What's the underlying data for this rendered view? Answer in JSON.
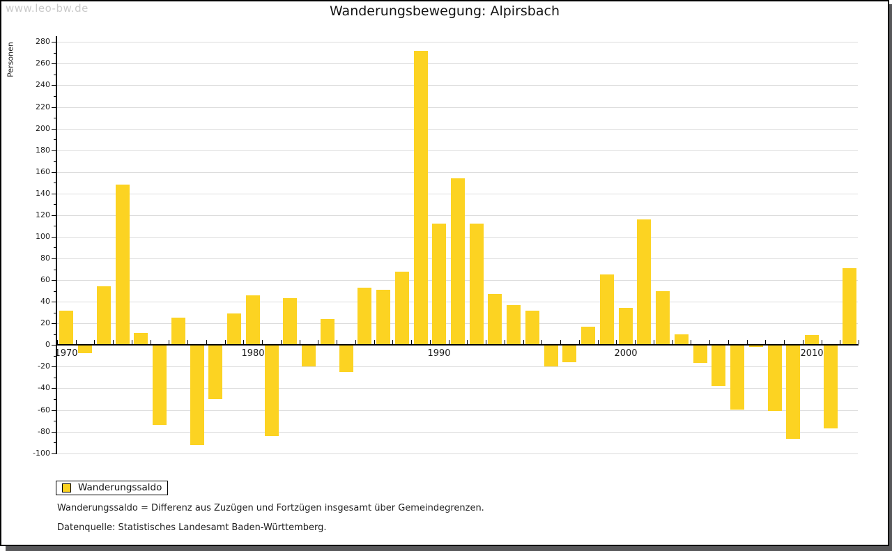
{
  "watermark": "www.leo-bw.de",
  "title": "Wanderungsbewegung: Alpirsbach",
  "legend": {
    "label": "Wanderungssaldo"
  },
  "footnotes": {
    "definition": "Wanderungssaldo = Differenz aus Zuzügen und Fortzügen insgesamt über Gemeindegrenzen.",
    "source": "Datenquelle: Statistisches Landesamt Baden-Württemberg."
  },
  "chart_data": {
    "type": "bar",
    "title": "Wanderungsbewegung: Alpirsbach",
    "ylabel": "Personen",
    "series_name": "Wanderungssaldo",
    "bar_color": "#fcd322",
    "grid": true,
    "legend_position": "bottom-left",
    "ylim": [
      -100,
      280
    ],
    "ytick_step": 20,
    "yticks": [
      280,
      260,
      240,
      220,
      200,
      180,
      160,
      140,
      120,
      100,
      80,
      60,
      40,
      20,
      0,
      -20,
      -40,
      -60,
      -80,
      -100
    ],
    "x_labeled_ticks": [
      1970,
      1980,
      1990,
      2000,
      2010
    ],
    "x": [
      1970,
      1971,
      1972,
      1973,
      1974,
      1975,
      1976,
      1977,
      1978,
      1979,
      1980,
      1981,
      1982,
      1983,
      1984,
      1985,
      1986,
      1987,
      1988,
      1989,
      1990,
      1991,
      1992,
      1993,
      1994,
      1995,
      1996,
      1997,
      1998,
      1999,
      2000,
      2001,
      2002,
      2003,
      2004,
      2005,
      2006,
      2007,
      2008,
      2009,
      2010,
      2011,
      2012
    ],
    "values": [
      32,
      -8,
      54,
      148,
      11,
      -74,
      25,
      -93,
      -50,
      29,
      46,
      -84,
      43,
      -20,
      24,
      -25,
      53,
      51,
      68,
      272,
      112,
      154,
      112,
      47,
      37,
      32,
      -20,
      -16,
      17,
      65,
      34,
      116,
      50,
      10,
      -17,
      -38,
      -60,
      -2,
      -61,
      -87,
      9,
      -77,
      71
    ]
  }
}
